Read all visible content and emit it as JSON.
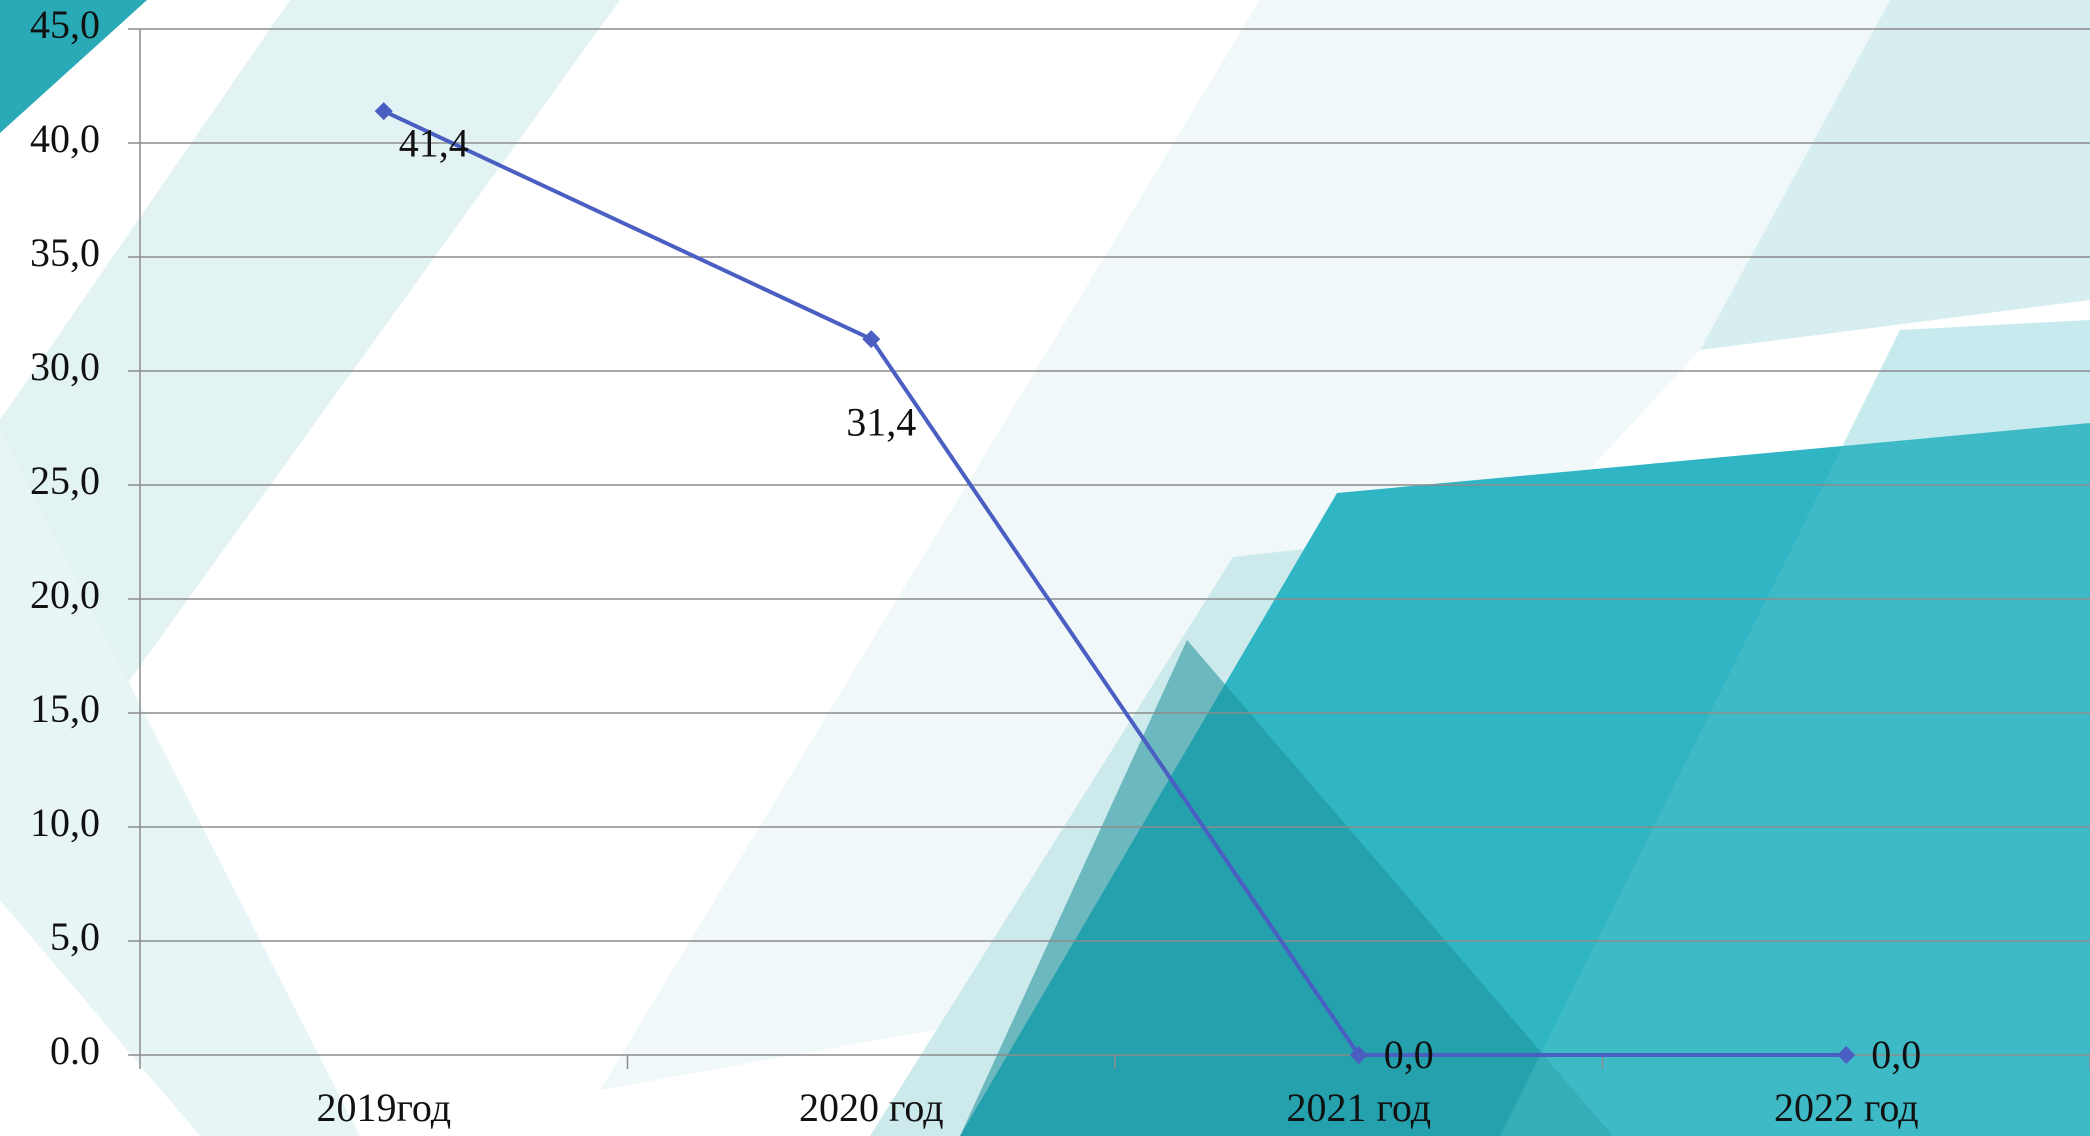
{
  "chart_data": {
    "type": "line",
    "categories": [
      "2019год",
      "2020 год",
      "2021 год",
      "2022 год"
    ],
    "values": [
      41.4,
      31.4,
      0,
      0
    ],
    "value_labels": [
      "41,4",
      "31,4",
      "0,0",
      "0,0"
    ],
    "color": "#4a5fc1",
    "ylim": [
      0,
      45
    ],
    "yticks": [
      {
        "value": 0,
        "label": "0.0"
      },
      {
        "value": 5,
        "label": "5,0"
      },
      {
        "value": 10,
        "label": "10,0"
      },
      {
        "value": 15,
        "label": "15,0"
      },
      {
        "value": 20,
        "label": "20,0"
      },
      {
        "value": 25,
        "label": "25,0"
      },
      {
        "value": 30,
        "label": "30,0"
      },
      {
        "value": 35,
        "label": "35,0"
      },
      {
        "value": 40,
        "label": "40,0"
      },
      {
        "value": 45,
        "label": "45,0"
      }
    ],
    "grid": true
  }
}
